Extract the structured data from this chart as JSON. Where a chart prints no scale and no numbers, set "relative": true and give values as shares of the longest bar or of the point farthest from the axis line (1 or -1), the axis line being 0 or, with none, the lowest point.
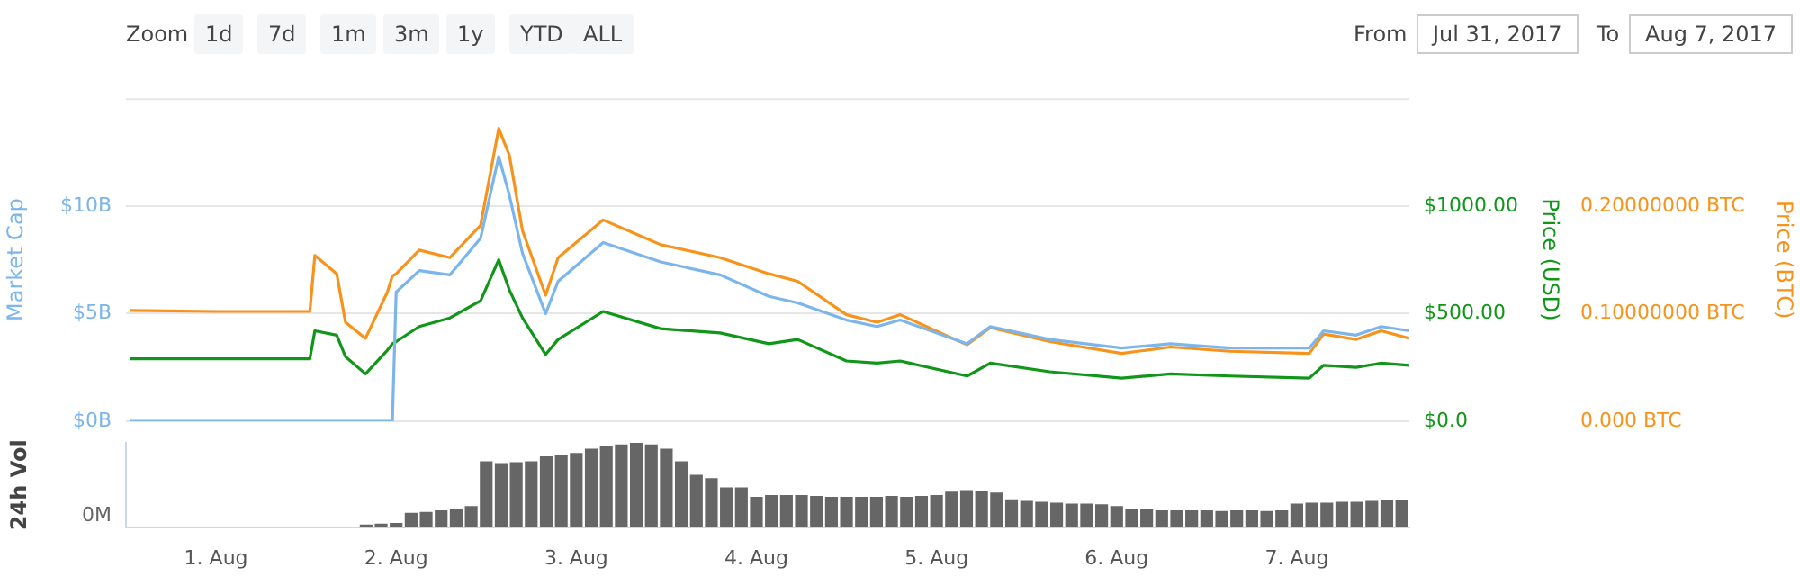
{
  "chart_data": [
    {
      "type": "other",
      "annotations": [
        "Zoom",
        "1d",
        "7d",
        "1m",
        "3m",
        "1y",
        "YTD",
        "ALL",
        "From",
        "Jul 31, 2017",
        "To",
        "Aug 7, 2017"
      ]
    },
    {
      "type": "line",
      "marker": "none",
      "grid": "y",
      "tick_labels": "y",
      "x": [
        "2017-07-31T12:30",
        "2017-08-01T00:00",
        "2017-08-01T12:30",
        "2017-08-01T13:10",
        "2017-08-01T16:05",
        "2017-08-01T17:15",
        "2017-08-01T19:55",
        "2017-08-01T22:50",
        "2017-08-01T23:30",
        "2017-08-02T00:00",
        "2017-08-02T03:05",
        "2017-08-02T07:10",
        "2017-08-02T11:15",
        "2017-08-02T13:40",
        "2017-08-02T15:05",
        "2017-08-02T16:50",
        "2017-08-02T19:55",
        "2017-08-02T21:35",
        "2017-08-03T03:35",
        "2017-08-03T11:15",
        "2017-08-03T19:10",
        "2017-08-04T01:40",
        "2017-08-04T05:30",
        "2017-08-04T12:00",
        "2017-08-04T16:05",
        "2017-08-04T19:10",
        "2017-08-05T04:05",
        "2017-08-05T07:10",
        "2017-08-05T15:05",
        "2017-08-06T00:40",
        "2017-08-06T07:10",
        "2017-08-06T15:05",
        "2017-08-07T01:40",
        "2017-08-07T03:35",
        "2017-08-07T07:55",
        "2017-08-07T11:15",
        "2017-08-07T15:00"
      ],
      "xlim": [
        "2017-07-31T12:00",
        "2017-08-07T15:00"
      ],
      "ylabel": "Market Cap",
      "ylim": [
        0,
        15
      ],
      "yticks": [
        {
          "value": 0,
          "label": "$0B"
        },
        {
          "value": 5,
          "label": "$5B"
        },
        {
          "value": 10,
          "label": "$10B"
        }
      ],
      "y2label": "Price (USD)",
      "y2lim": [
        0,
        1500
      ],
      "y2ticks": [
        {
          "value": 0,
          "label": "$0.0"
        },
        {
          "value": 500,
          "label": "$500.00"
        },
        {
          "value": 1000,
          "label": "$1000.00"
        }
      ],
      "y3label": "Price (BTC)",
      "y3lim": [
        0,
        0.3
      ],
      "y3ticks": [
        {
          "value": 0,
          "label": "0.000 BTC"
        },
        {
          "value": 0.1,
          "label": "0.10000000 BTC"
        },
        {
          "value": 0.2,
          "label": "0.20000000 BTC"
        }
      ],
      "series": [
        {
          "color": "#7cb5ec",
          "values": [
            0,
            0,
            0,
            0,
            0,
            0,
            0,
            0,
            0,
            6,
            7,
            6.8,
            8.5,
            12.3,
            10.5,
            7.8,
            5,
            6.5,
            8.3,
            7.4,
            6.8,
            5.8,
            5.5,
            4.7,
            4.4,
            4.7,
            3.6,
            4.4,
            3.8,
            3.4,
            3.6,
            3.4,
            3.4,
            4.2,
            4,
            4.4,
            4.2
          ]
        },
        {
          "color": "#f7931a",
          "axis": "y3",
          "values": [
            0.103,
            0.102,
            0.102,
            0.154,
            0.137,
            0.092,
            0.077,
            0.12,
            0.135,
            0.137,
            0.159,
            0.152,
            0.182,
            0.272,
            0.247,
            0.177,
            0.117,
            0.152,
            0.187,
            0.164,
            0.152,
            0.137,
            0.13,
            0.099,
            0.092,
            0.099,
            0.071,
            0.087,
            0.074,
            0.063,
            0.069,
            0.065,
            0.063,
            0.081,
            0.076,
            0.084,
            0.077
          ]
        },
        {
          "color": "#109618",
          "axis": "y2",
          "values": [
            290,
            290,
            290,
            420,
            400,
            300,
            220,
            330,
            360,
            370,
            440,
            480,
            560,
            750,
            610,
            480,
            310,
            380,
            510,
            430,
            410,
            360,
            380,
            280,
            270,
            280,
            210,
            270,
            230,
            200,
            220,
            210,
            200,
            260,
            250,
            270,
            260
          ]
        }
      ]
    },
    {
      "type": "bar",
      "relative": true,
      "color": "#666666",
      "ylabel": "24h Vol",
      "annotations": [
        "0M"
      ],
      "xlim": [
        "2017-07-31T12:00",
        "2017-08-07T15:00"
      ],
      "xticks": [
        {
          "value": "2017-08-01",
          "label": "1. Aug"
        },
        {
          "value": "2017-08-02",
          "label": "2. Aug"
        },
        {
          "value": "2017-08-03",
          "label": "3. Aug"
        },
        {
          "value": "2017-08-04",
          "label": "4. Aug"
        },
        {
          "value": "2017-08-05",
          "label": "5. Aug"
        },
        {
          "value": "2017-08-06",
          "label": "6. Aug"
        },
        {
          "value": "2017-08-07",
          "label": "7. Aug"
        }
      ],
      "x": [
        "2017-08-01T20:00",
        "2017-08-01T22:00",
        "2017-08-02T00:00",
        "2017-08-02T02:00",
        "2017-08-02T04:00",
        "2017-08-02T06:00",
        "2017-08-02T08:00",
        "2017-08-02T10:00",
        "2017-08-02T12:00",
        "2017-08-02T14:00",
        "2017-08-02T16:00",
        "2017-08-02T18:00",
        "2017-08-02T20:00",
        "2017-08-02T22:00",
        "2017-08-03T00:00",
        "2017-08-03T02:00",
        "2017-08-03T04:00",
        "2017-08-03T06:00",
        "2017-08-03T08:00",
        "2017-08-03T10:00",
        "2017-08-03T12:00",
        "2017-08-03T14:00",
        "2017-08-03T16:00",
        "2017-08-03T18:00",
        "2017-08-03T20:00",
        "2017-08-03T22:00",
        "2017-08-04T00:00",
        "2017-08-04T02:00",
        "2017-08-04T04:00",
        "2017-08-04T06:00",
        "2017-08-04T08:00",
        "2017-08-04T10:00",
        "2017-08-04T12:00",
        "2017-08-04T14:00",
        "2017-08-04T16:00",
        "2017-08-04T18:00",
        "2017-08-04T20:00",
        "2017-08-04T22:00",
        "2017-08-05T00:00",
        "2017-08-05T02:00",
        "2017-08-05T04:00",
        "2017-08-05T06:00",
        "2017-08-05T08:00",
        "2017-08-05T10:00",
        "2017-08-05T12:00",
        "2017-08-05T14:00",
        "2017-08-05T16:00",
        "2017-08-05T18:00",
        "2017-08-05T20:00",
        "2017-08-05T22:00",
        "2017-08-06T00:00",
        "2017-08-06T02:00",
        "2017-08-06T04:00",
        "2017-08-06T06:00",
        "2017-08-06T08:00",
        "2017-08-06T10:00",
        "2017-08-06T12:00",
        "2017-08-06T14:00",
        "2017-08-06T16:00",
        "2017-08-06T18:00",
        "2017-08-06T20:00",
        "2017-08-06T22:00",
        "2017-08-07T00:00",
        "2017-08-07T02:00",
        "2017-08-07T04:00",
        "2017-08-07T06:00",
        "2017-08-07T08:00",
        "2017-08-07T10:00",
        "2017-08-07T12:00",
        "2017-08-07T14:00"
      ],
      "values": [
        0.03,
        0.04,
        0.05,
        0.17,
        0.18,
        0.2,
        0.22,
        0.25,
        0.78,
        0.76,
        0.77,
        0.78,
        0.84,
        0.86,
        0.88,
        0.93,
        0.96,
        0.98,
        1,
        0.98,
        0.93,
        0.78,
        0.62,
        0.58,
        0.47,
        0.47,
        0.36,
        0.38,
        0.38,
        0.38,
        0.37,
        0.36,
        0.36,
        0.36,
        0.36,
        0.37,
        0.36,
        0.37,
        0.38,
        0.42,
        0.44,
        0.43,
        0.41,
        0.33,
        0.31,
        0.3,
        0.29,
        0.28,
        0.28,
        0.27,
        0.25,
        0.22,
        0.21,
        0.2,
        0.2,
        0.2,
        0.2,
        0.19,
        0.2,
        0.2,
        0.19,
        0.2,
        0.28,
        0.29,
        0.29,
        0.3,
        0.3,
        0.31,
        0.32,
        0.32
      ]
    }
  ]
}
